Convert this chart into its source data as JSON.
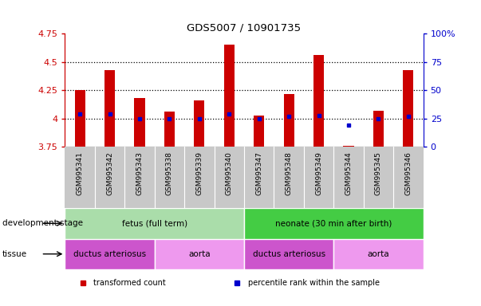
{
  "title": "GDS5007 / 10901735",
  "samples": [
    "GSM995341",
    "GSM995342",
    "GSM995343",
    "GSM995338",
    "GSM995339",
    "GSM995340",
    "GSM995347",
    "GSM995348",
    "GSM995349",
    "GSM995344",
    "GSM995345",
    "GSM995346"
  ],
  "bar_tops": [
    4.25,
    4.43,
    4.18,
    4.06,
    4.16,
    4.65,
    4.03,
    4.22,
    4.56,
    3.76,
    4.07,
    4.43
  ],
  "bar_bottom": 3.75,
  "blue_dot_y": [
    4.04,
    4.04,
    4.0,
    4.0,
    4.0,
    4.04,
    4.0,
    4.02,
    4.03,
    3.94,
    4.0,
    4.02
  ],
  "ylim_left": [
    3.75,
    4.75
  ],
  "ylim_right": [
    0,
    100
  ],
  "yticks_left": [
    3.75,
    4.0,
    4.25,
    4.5,
    4.75
  ],
  "yticks_right": [
    0,
    25,
    50,
    75,
    100
  ],
  "ytick_labels_left": [
    "3.75",
    "4",
    "4.25",
    "4.5",
    "4.75"
  ],
  "ytick_labels_right": [
    "0",
    "25",
    "50",
    "75",
    "100%"
  ],
  "hlines": [
    4.0,
    4.25,
    4.5
  ],
  "bar_color": "#cc0000",
  "dot_color": "#0000cc",
  "gray_tick_bg": "#c8c8c8",
  "dev_stage_groups": [
    {
      "label": "fetus (full term)",
      "start": 0,
      "end": 6,
      "color": "#aaddaa"
    },
    {
      "label": "neonate (30 min after birth)",
      "start": 6,
      "end": 12,
      "color": "#44cc44"
    }
  ],
  "tissue_groups": [
    {
      "label": "ductus arteriosus",
      "start": 0,
      "end": 3,
      "color": "#cc55cc"
    },
    {
      "label": "aorta",
      "start": 3,
      "end": 6,
      "color": "#ee99ee"
    },
    {
      "label": "ductus arteriosus",
      "start": 6,
      "end": 9,
      "color": "#cc55cc"
    },
    {
      "label": "aorta",
      "start": 9,
      "end": 12,
      "color": "#ee99ee"
    }
  ],
  "legend_items": [
    {
      "label": "transformed count",
      "color": "#cc0000"
    },
    {
      "label": "percentile rank within the sample",
      "color": "#0000cc"
    }
  ],
  "left_axis_color": "#cc0000",
  "right_axis_color": "#0000cc",
  "row_label_dev": "development stage",
  "row_label_tissue": "tissue",
  "figsize": [
    6.03,
    3.84
  ],
  "dpi": 100
}
